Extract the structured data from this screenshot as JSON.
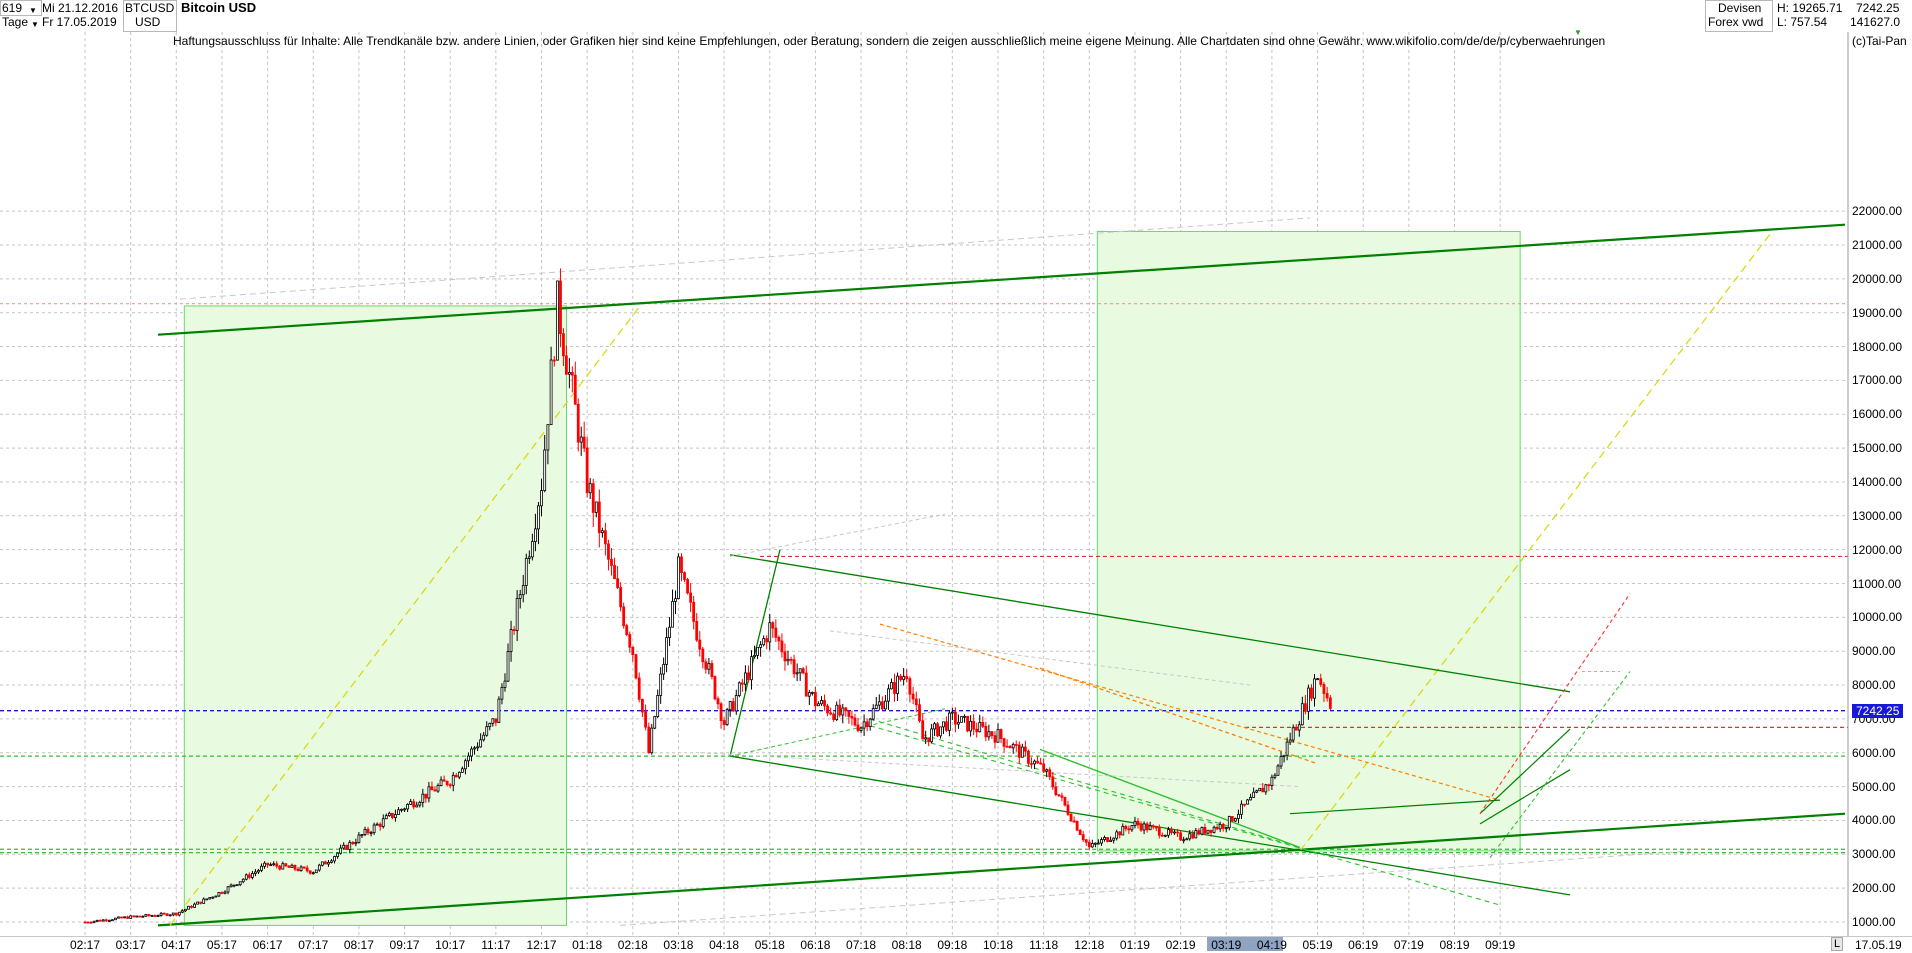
{
  "header": {
    "count": "619",
    "period": "Tage",
    "date_from": "Mi 21.12.2016",
    "date_to": "Fr 17.05.2019",
    "symbol": "BTCUSD",
    "currency": "USD",
    "title": "Bitcoin USD",
    "market": "Devisen",
    "source": "Forex vwd",
    "high_label": "H: 19265.71",
    "low_label": "L: 757.54",
    "last_value": "7242.25",
    "volume_value": "141627.0",
    "copyright": "(c)Tai-Pan"
  },
  "disclaimer": "Haftungsausschluss für Inhalte: Alle Trendkanäle bzw. andere Linien, oder Grafiken hier sind keine Empfehlungen, oder Beratung, sondern die zeigen ausschließlich meine eigene Meinung. Alle Chartdaten sind ohne Gewähr.  www.wikifolio.com/de/de/p/cyberwaehrungen",
  "footer": {
    "scroll_label": "L",
    "end_date": "17.05.19"
  },
  "colors": {
    "up_candle": "#000000",
    "down_candle": "#ff0000",
    "channel_green": "#008000",
    "zone_fill": "#e8fbe0",
    "last_price_line": "#1818d8",
    "fib_orange": "#ff8000",
    "yellow_diag": "#d8d800"
  },
  "chart_data": {
    "type": "candlestick",
    "title": "Bitcoin USD",
    "symbol": "BTCUSD",
    "ylim": [
      1000,
      22000
    ],
    "yticks": [
      1000,
      2000,
      3000,
      4000,
      5000,
      6000,
      7000,
      8000,
      9000,
      10000,
      11000,
      12000,
      13000,
      14000,
      15000,
      16000,
      17000,
      18000,
      19000,
      20000,
      21000,
      22000
    ],
    "ytick_labels": [
      "1000.00",
      "2000.00",
      "3000.00",
      "4000.00",
      "5000.00",
      "6000.00",
      "7000.00",
      "8000.00",
      "9000.00",
      "10000.00",
      "11000.00",
      "12000.00",
      "13000.00",
      "14000.00",
      "15000.00",
      "16000.00",
      "17000.00",
      "18000.00",
      "19000.00",
      "20000.00",
      "21000.00",
      "22000.00"
    ],
    "xtick_labels": [
      "02:17",
      "03:17",
      "04:17",
      "05:17",
      "06:17",
      "07:17",
      "08:17",
      "09:17",
      "10:17",
      "11:17",
      "12:17",
      "01:18",
      "02:18",
      "03:18",
      "04:18",
      "05:18",
      "06:18",
      "07:18",
      "08:18",
      "09:18",
      "10:18",
      "11:18",
      "12:18",
      "01:19",
      "02:19",
      "03:19",
      "04:19",
      "05:19",
      "06:19",
      "07:19",
      "08:19",
      "09:19"
    ],
    "last_price": 7242.25,
    "high": 19265.71,
    "low": 757.54,
    "grid": true,
    "price_path": [
      [
        "02:17",
        1000
      ],
      [
        "03:17",
        1150
      ],
      [
        "04:17",
        1250
      ],
      [
        "05:17",
        1900
      ],
      [
        "06:17",
        2700
      ],
      [
        "07:17",
        2500
      ],
      [
        "08:17",
        3500
      ],
      [
        "09:17",
        4400
      ],
      [
        "10:17",
        5200
      ],
      [
        "11:17",
        7000
      ],
      [
        "12:17",
        14000
      ],
      [
        "12:17",
        19265.71
      ],
      [
        "01:18",
        14000
      ],
      [
        "02:18",
        9000
      ],
      [
        "02:18",
        6000
      ],
      [
        "03:18",
        11400
      ],
      [
        "04:18",
        6900
      ],
      [
        "05:18",
        9700
      ],
      [
        "06:18",
        7500
      ],
      [
        "07:18",
        6800
      ],
      [
        "08:18",
        8400
      ],
      [
        "08:18",
        6400
      ],
      [
        "09:18",
        7000
      ],
      [
        "10:18",
        6500
      ],
      [
        "11:18",
        5500
      ],
      [
        "12:18",
        3200
      ],
      [
        "01:19",
        3900
      ],
      [
        "02:19",
        3500
      ],
      [
        "03:19",
        3900
      ],
      [
        "04:19",
        5200
      ],
      [
        "05:19",
        8300
      ],
      [
        "05:19",
        7242.25
      ]
    ],
    "horizontal_lines": [
      19265.71,
      11800,
      7242.25,
      6750,
      5900,
      3150,
      3050
    ],
    "zones": [
      {
        "from": "04:17",
        "to": "12:17",
        "low": 900,
        "high": 19200
      },
      {
        "from": "12:18",
        "to": "09:19",
        "low": 3100,
        "high": 21400
      }
    ]
  }
}
